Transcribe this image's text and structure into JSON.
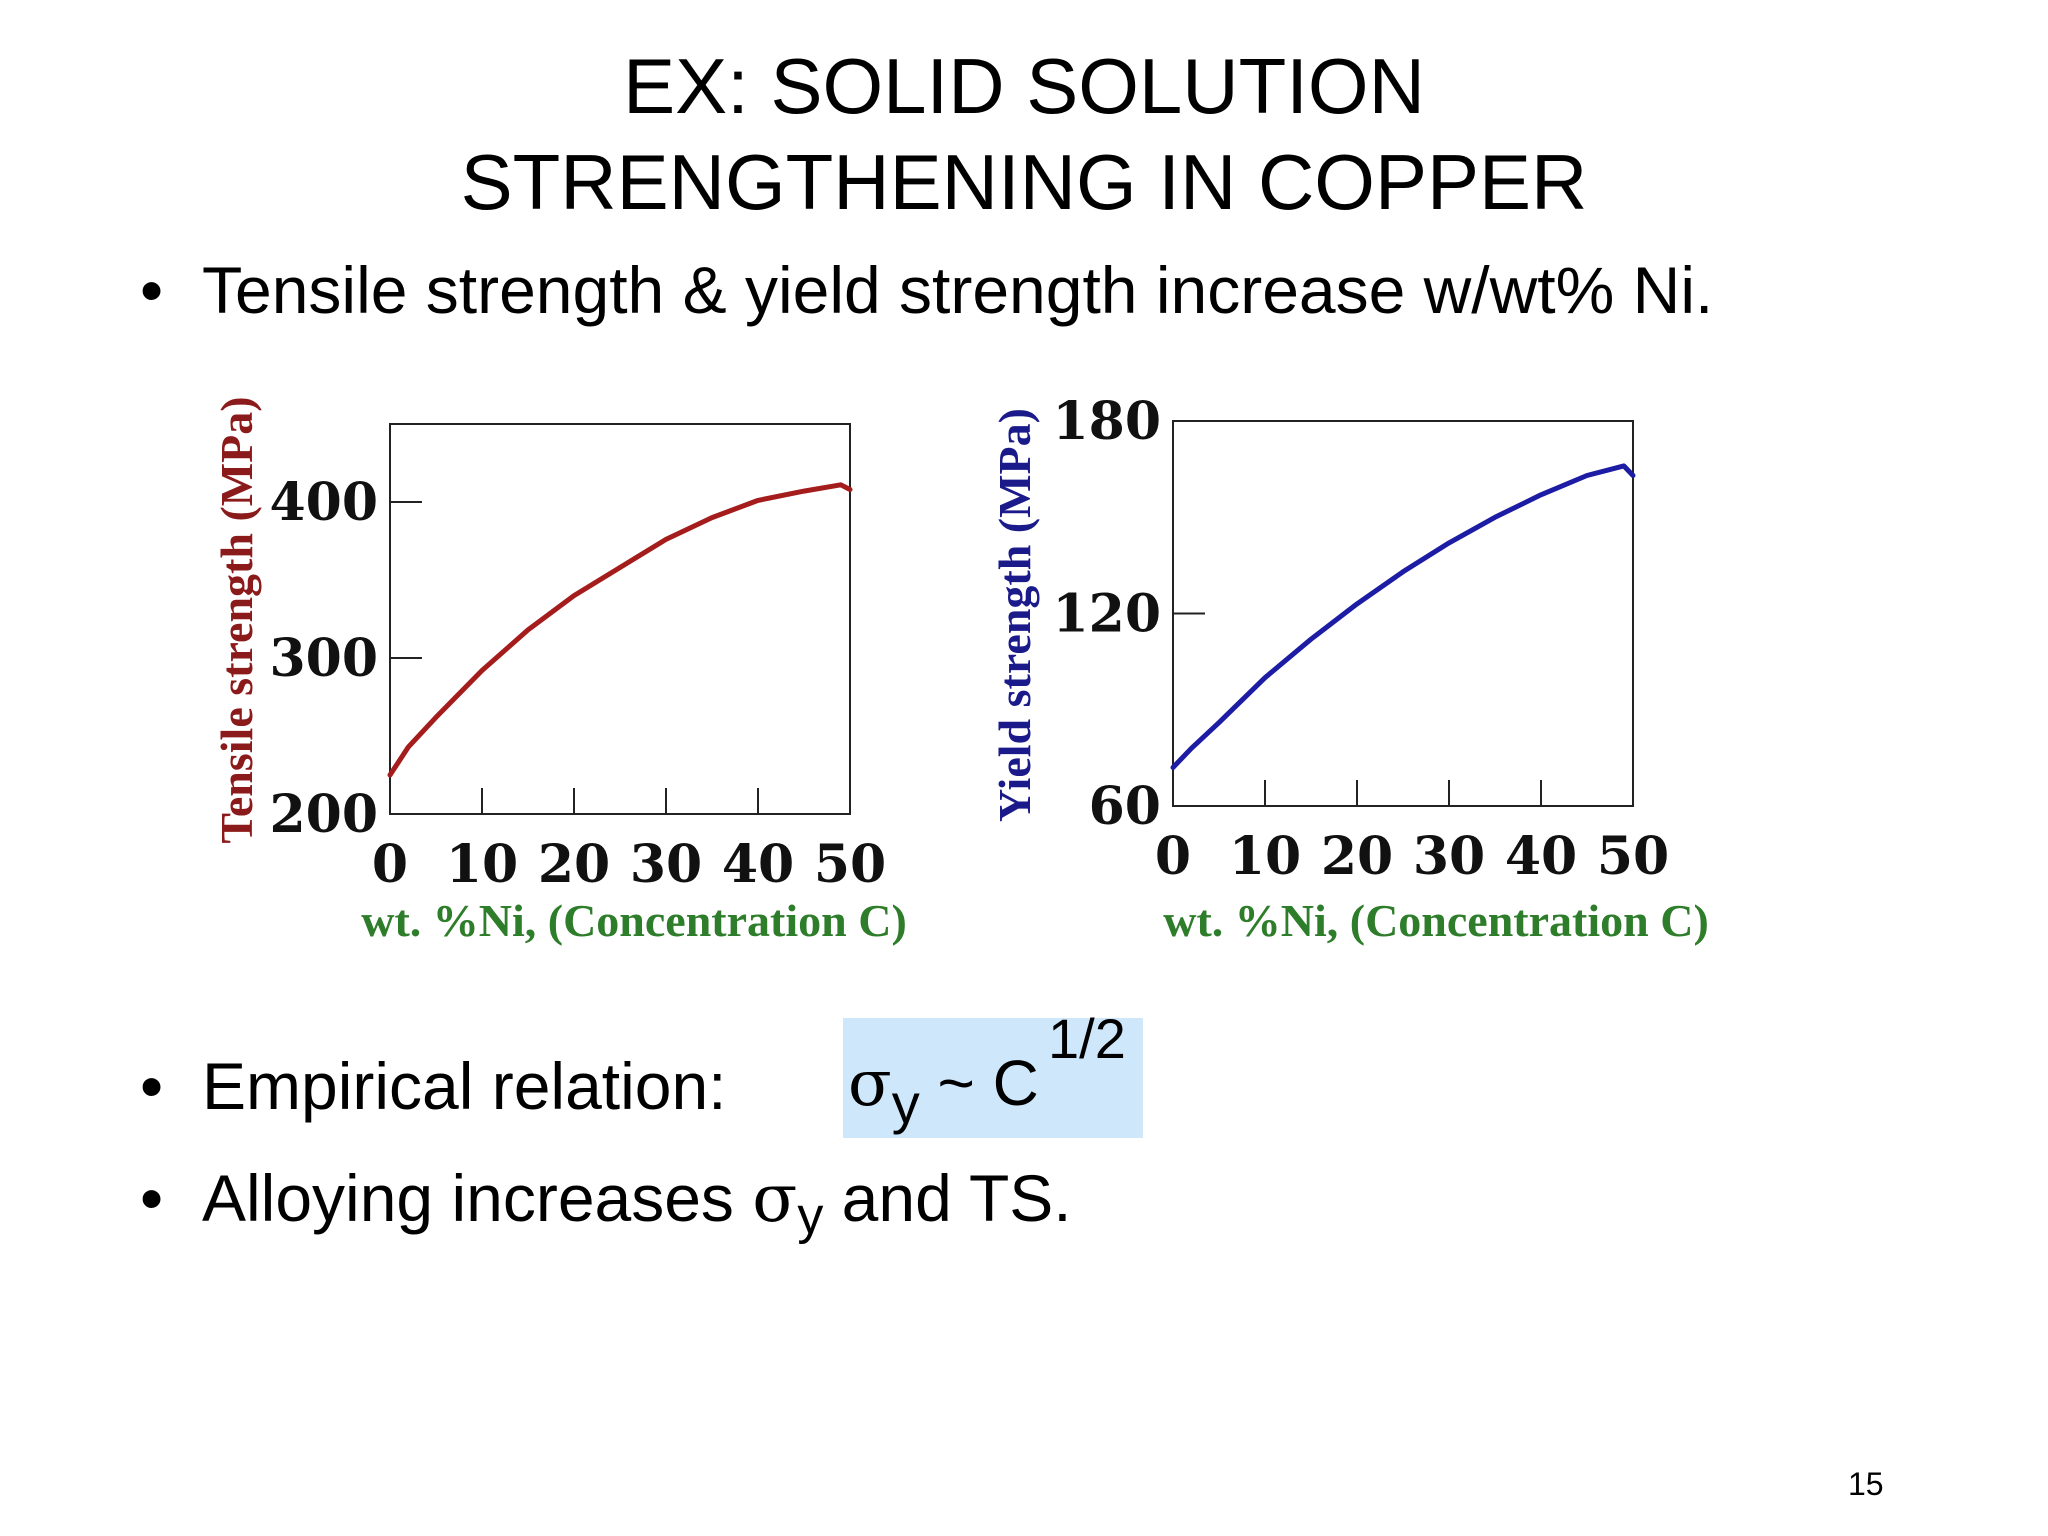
{
  "slide": {
    "title_line1": "EX:  SOLID SOLUTION",
    "title_line2": "STRENGTHENING IN COPPER",
    "bullet1": "Tensile strength & yield strength increase w/wt% Ni.",
    "bullet2_label": "Empirical relation:",
    "bullet3_pre": "Alloying increases ",
    "bullet3_post": " and TS.",
    "sigma": "σ",
    "sub_y": "y",
    "formula_tilde": " ~ C",
    "formula_exp": "1/2",
    "bullet_char": "•",
    "page_number": "15"
  },
  "chart_data": [
    {
      "type": "line",
      "ylabel": "Tensile strength (MPa)",
      "xlabel": "wt. %Ni, (Concentration C)",
      "xlim": [
        0,
        50
      ],
      "ylim": [
        200,
        450
      ],
      "xticks": [
        "0",
        "10",
        "20",
        "30",
        "40",
        "50"
      ],
      "yticks": [
        "200",
        "300",
        "400"
      ],
      "color": "#a51c1c",
      "x": [
        0,
        2,
        5,
        10,
        15,
        20,
        25,
        30,
        35,
        40,
        45,
        49,
        50
      ],
      "y": [
        225,
        243,
        262,
        292,
        318,
        340,
        358,
        376,
        390,
        401,
        407,
        411,
        408
      ]
    },
    {
      "type": "line",
      "ylabel": "Yield strength (MPa)",
      "xlabel": "wt. %Ni, (Concentration C)",
      "xlim": [
        0,
        50
      ],
      "ylim": [
        60,
        180
      ],
      "xticks": [
        "0",
        "10",
        "20",
        "30",
        "40",
        "50"
      ],
      "yticks": [
        "60",
        "120",
        "180"
      ],
      "color": "#1c1ca5",
      "x": [
        0,
        2,
        5,
        10,
        15,
        20,
        25,
        30,
        35,
        40,
        45,
        49,
        50
      ],
      "y": [
        72,
        78,
        86,
        100,
        112,
        123,
        133,
        142,
        150,
        157,
        163,
        166,
        163
      ]
    }
  ]
}
